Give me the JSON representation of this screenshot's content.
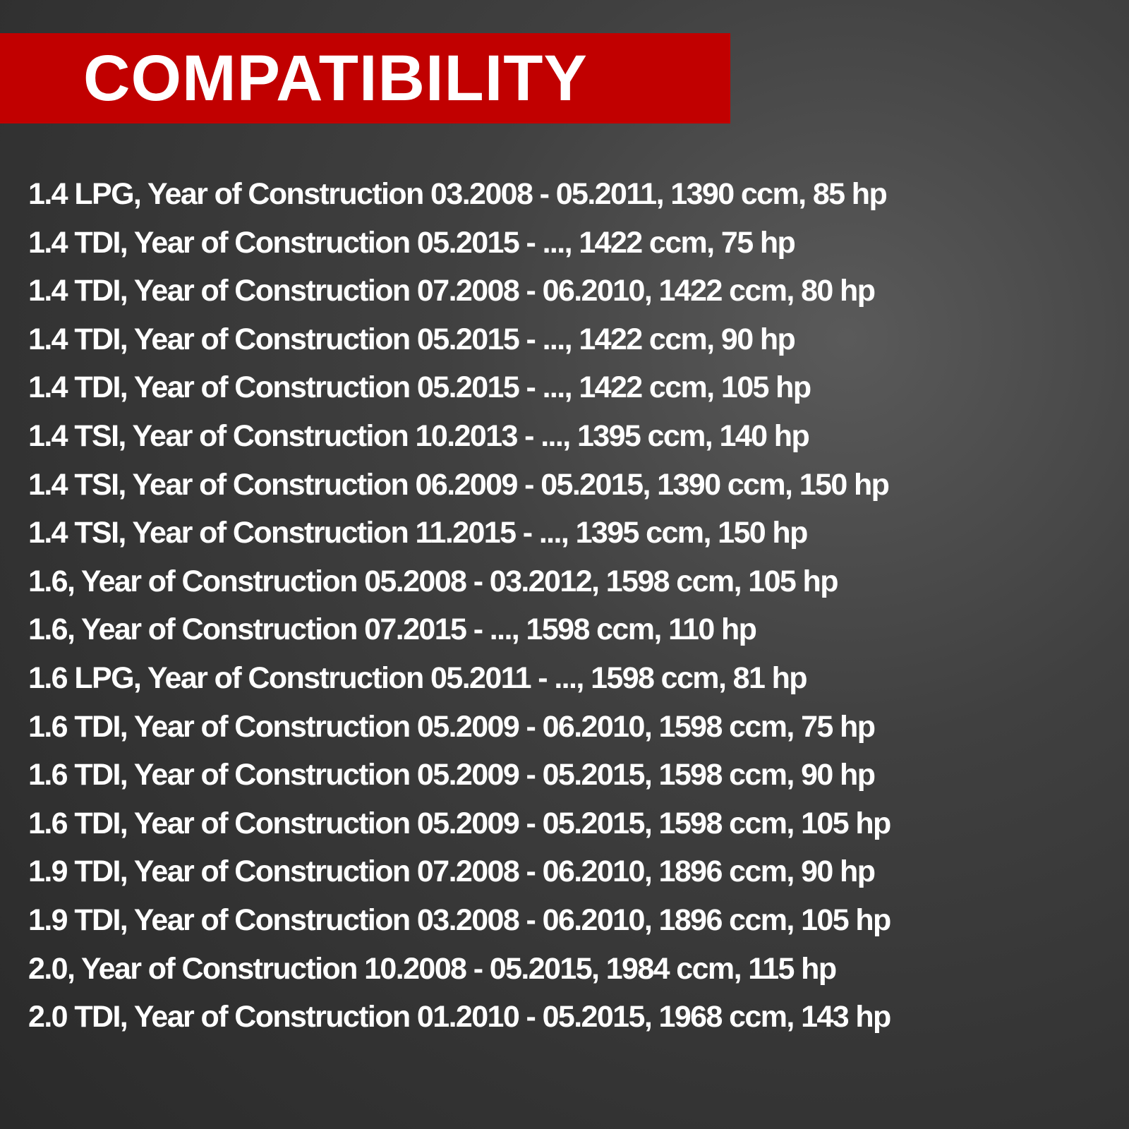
{
  "header": {
    "title": "COMPATIBILITY"
  },
  "list": {
    "items": [
      "1.4 LPG, Year of Construction 03.2008 - 05.2011, 1390 ccm, 85 hp",
      "1.4 TDI, Year of Construction 05.2015 - ..., 1422 ccm, 75 hp",
      "1.4 TDI, Year of Construction 07.2008 - 06.2010, 1422 ccm, 80 hp",
      "1.4 TDI, Year of Construction 05.2015 - ..., 1422 ccm, 90 hp",
      "1.4 TDI, Year of Construction 05.2015 - ..., 1422 ccm, 105 hp",
      "1.4 TSI, Year of Construction 10.2013 - ..., 1395 ccm, 140 hp",
      "1.4 TSI, Year of Construction 06.2009 - 05.2015, 1390 ccm, 150 hp",
      "1.4 TSI, Year of Construction 11.2015 - ..., 1395 ccm, 150 hp",
      "1.6, Year of Construction 05.2008 - 03.2012, 1598 ccm, 105 hp",
      "1.6, Year of Construction 07.2015 - ..., 1598 ccm, 110 hp",
      "1.6 LPG, Year of Construction 05.2011 - ..., 1598 ccm, 81 hp",
      "1.6 TDI, Year of Construction 05.2009 - 06.2010, 1598 ccm, 75 hp",
      "1.6 TDI, Year of Construction 05.2009 - 05.2015, 1598 ccm, 90 hp",
      "1.6 TDI, Year of Construction 05.2009 - 05.2015, 1598 ccm, 105 hp",
      "1.9 TDI, Year of Construction 07.2008 - 06.2010, 1896 ccm, 90 hp",
      "1.9 TDI, Year of Construction 03.2008 - 06.2010, 1896 ccm, 105 hp",
      "2.0, Year of Construction 10.2008 - 05.2015, 1984 ccm, 115 hp",
      "2.0 TDI, Year of Construction 01.2010 - 05.2015, 1968 ccm, 143 hp"
    ]
  }
}
